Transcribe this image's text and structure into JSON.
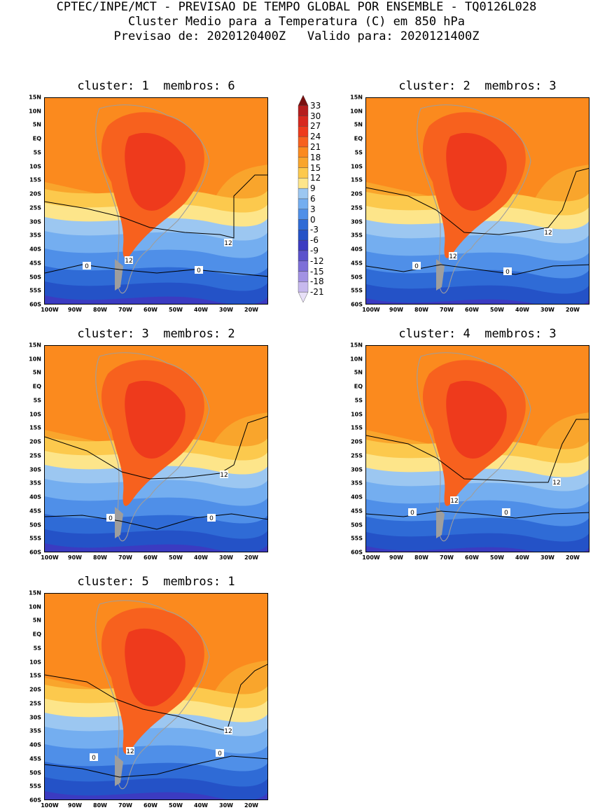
{
  "header": {
    "line1": "CPTEC/INPE/MCT - PREVISAO DE TEMPO GLOBAL POR ENSEMBLE - TQ0126L028",
    "line2": "Cluster Medio para a Temperatura (C) em 850 hPa",
    "line3": "Previsao de: 2020120400Z   Valido para: 2020121400Z"
  },
  "axes": {
    "lat": [
      "15N",
      "10N",
      "5N",
      "EQ",
      "5S",
      "10S",
      "15S",
      "20S",
      "25S",
      "30S",
      "35S",
      "40S",
      "45S",
      "50S",
      "55S",
      "60S"
    ],
    "lon": [
      "100W",
      "90W",
      "80W",
      "70W",
      "60W",
      "50W",
      "40W",
      "30W",
      "20W"
    ]
  },
  "panels": [
    {
      "title": "cluster: 1  membros: 6",
      "contours": [
        "12",
        "12",
        "0",
        "0"
      ]
    },
    {
      "title": "cluster: 2  membros: 3",
      "contours": [
        "12",
        "12",
        "0",
        "0"
      ]
    },
    {
      "title": "cluster: 3  membros: 2",
      "contours": [
        "12",
        "0",
        "0"
      ]
    },
    {
      "title": "cluster: 4  membros: 3",
      "contours": [
        "12",
        "12",
        "0",
        "0"
      ]
    },
    {
      "title": "cluster: 5  membros: 1",
      "contours": [
        "12",
        "12",
        "0",
        "0"
      ]
    }
  ],
  "colorbar": {
    "labels": [
      "33",
      "30",
      "27",
      "24",
      "21",
      "18",
      "15",
      "12",
      "9",
      "6",
      "3",
      "0",
      "-3",
      "-6",
      "-9",
      "-12",
      "-15",
      "-18",
      "-21"
    ],
    "colors": [
      "#7a0f0f",
      "#b51d1d",
      "#d8281e",
      "#ee3a1c",
      "#f7611e",
      "#fb8a1e",
      "#f9a52c",
      "#fcc94d",
      "#fde58a",
      "#9cc7f1",
      "#74aef0",
      "#4f8fe8",
      "#2f6bd6",
      "#2452c7",
      "#3b3bc1",
      "#5b52cc",
      "#7d6fd8",
      "#a292e3",
      "#c7b9ee",
      "#e8e0f8"
    ],
    "land_color": "#9e9e9e",
    "contour_color": "#000000"
  }
}
